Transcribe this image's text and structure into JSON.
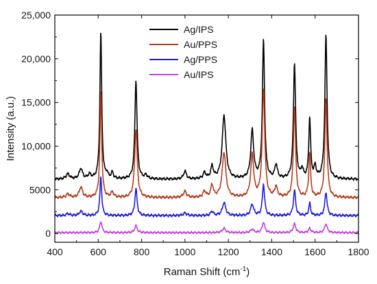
{
  "chart_data": {
    "type": "line",
    "title": "",
    "xlabel": "Raman Shift (cm",
    "xlabel_superscript": "-1",
    "xlabel_suffix": ")",
    "ylabel": "Intensity (a.u.)",
    "xlim": [
      400,
      1800
    ],
    "ylim": [
      -1000,
      25000
    ],
    "x_ticks": [
      400,
      600,
      800,
      1000,
      1200,
      1400,
      1600,
      1800
    ],
    "y_ticks": [
      0,
      5000,
      10000,
      15000,
      20000,
      25000
    ],
    "y_tick_labels": [
      "0",
      "5000",
      "10,000",
      "15,000",
      "20,000",
      "25,000"
    ],
    "grid": false,
    "legend_position": "top-center",
    "series": [
      {
        "name": "Ag/IPS",
        "color": "#000000",
        "baseline": 6200,
        "peaks": [
          {
            "x": 460,
            "h": 600,
            "w": 10
          },
          {
            "x": 520,
            "h": 1200,
            "w": 9
          },
          {
            "x": 560,
            "h": 500,
            "w": 8
          },
          {
            "x": 612,
            "h": 16800,
            "w": 5
          },
          {
            "x": 640,
            "h": 500,
            "w": 6
          },
          {
            "x": 665,
            "h": 700,
            "w": 6
          },
          {
            "x": 774,
            "h": 11300,
            "w": 6
          },
          {
            "x": 820,
            "h": 400,
            "w": 8
          },
          {
            "x": 1000,
            "h": 900,
            "w": 8
          },
          {
            "x": 1090,
            "h": 700,
            "w": 8
          },
          {
            "x": 1125,
            "h": 1400,
            "w": 7
          },
          {
            "x": 1180,
            "h": 7300,
            "w": 10
          },
          {
            "x": 1310,
            "h": 5500,
            "w": 8
          },
          {
            "x": 1362,
            "h": 15800,
            "w": 6
          },
          {
            "x": 1420,
            "h": 1600,
            "w": 7
          },
          {
            "x": 1505,
            "h": 13200,
            "w": 6
          },
          {
            "x": 1540,
            "h": 1000,
            "w": 6
          },
          {
            "x": 1575,
            "h": 6900,
            "w": 5
          },
          {
            "x": 1600,
            "h": 1300,
            "w": 6
          },
          {
            "x": 1650,
            "h": 16400,
            "w": 6
          }
        ]
      },
      {
        "name": "Au/PPS",
        "color": "#b23a1c",
        "baseline": 4100,
        "peaks": [
          {
            "x": 460,
            "h": 400,
            "w": 10
          },
          {
            "x": 520,
            "h": 1200,
            "w": 9
          },
          {
            "x": 612,
            "h": 12000,
            "w": 5
          },
          {
            "x": 665,
            "h": 600,
            "w": 7
          },
          {
            "x": 774,
            "h": 7900,
            "w": 7
          },
          {
            "x": 1000,
            "h": 700,
            "w": 9
          },
          {
            "x": 1090,
            "h": 700,
            "w": 8
          },
          {
            "x": 1125,
            "h": 1400,
            "w": 7
          },
          {
            "x": 1180,
            "h": 5200,
            "w": 10
          },
          {
            "x": 1310,
            "h": 4900,
            "w": 8
          },
          {
            "x": 1362,
            "h": 12400,
            "w": 7
          },
          {
            "x": 1420,
            "h": 1200,
            "w": 7
          },
          {
            "x": 1505,
            "h": 10400,
            "w": 6
          },
          {
            "x": 1575,
            "h": 5100,
            "w": 5
          },
          {
            "x": 1650,
            "h": 11300,
            "w": 6
          }
        ]
      },
      {
        "name": "Ag/PPS",
        "color": "#1a1adb",
        "baseline": 2050,
        "peaks": [
          {
            "x": 460,
            "h": 200,
            "w": 10
          },
          {
            "x": 520,
            "h": 500,
            "w": 9
          },
          {
            "x": 612,
            "h": 4500,
            "w": 5
          },
          {
            "x": 774,
            "h": 3100,
            "w": 6
          },
          {
            "x": 1000,
            "h": 300,
            "w": 9
          },
          {
            "x": 1125,
            "h": 500,
            "w": 7
          },
          {
            "x": 1180,
            "h": 1500,
            "w": 9
          },
          {
            "x": 1310,
            "h": 1300,
            "w": 8
          },
          {
            "x": 1362,
            "h": 3600,
            "w": 6
          },
          {
            "x": 1505,
            "h": 2900,
            "w": 6
          },
          {
            "x": 1575,
            "h": 1400,
            "w": 5
          },
          {
            "x": 1650,
            "h": 2700,
            "w": 6
          }
        ]
      },
      {
        "name": "Au/IPS",
        "color": "#c040d8",
        "baseline": 100,
        "peaks": [
          {
            "x": 612,
            "h": 1300,
            "w": 6
          },
          {
            "x": 774,
            "h": 800,
            "w": 7
          },
          {
            "x": 1180,
            "h": 500,
            "w": 9
          },
          {
            "x": 1310,
            "h": 400,
            "w": 8
          },
          {
            "x": 1362,
            "h": 1200,
            "w": 7
          },
          {
            "x": 1505,
            "h": 1000,
            "w": 7
          },
          {
            "x": 1575,
            "h": 500,
            "w": 6
          },
          {
            "x": 1650,
            "h": 1000,
            "w": 7
          }
        ]
      }
    ]
  }
}
